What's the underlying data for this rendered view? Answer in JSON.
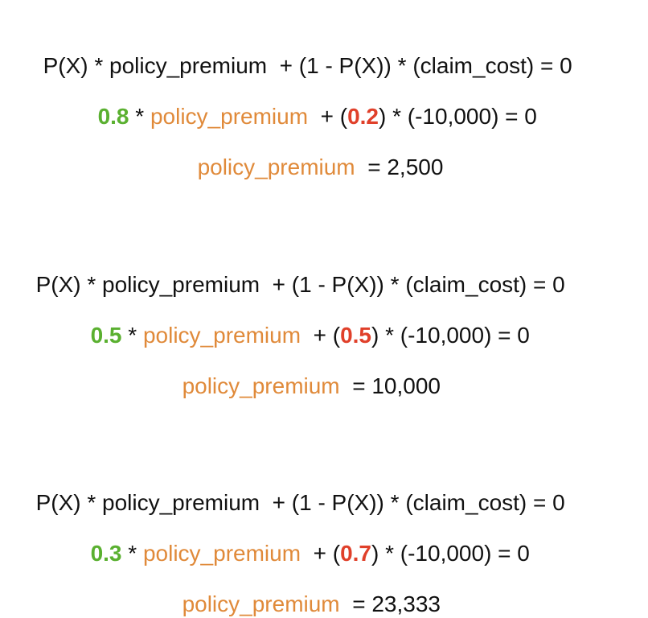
{
  "blocks": [
    {
      "general": "P(X) * policy_premium  + (1 - P(X)) * (claim_cost) = 0",
      "p": "0.8",
      "one_minus_p": "0.2",
      "times": " * ",
      "premium_label": "policy_premium",
      "plus_open": "  + (",
      "claim_tail": ") * (-10,000) = 0",
      "result_eq": "  = ",
      "result_value": "2,500"
    },
    {
      "general": "P(X) * policy_premium  + (1 - P(X)) * (claim_cost) = 0",
      "p": "0.5",
      "one_minus_p": "0.5",
      "times": " * ",
      "premium_label": "policy_premium",
      "plus_open": "  + (",
      "claim_tail": ") * (-10,000) = 0",
      "result_eq": "  = ",
      "result_value": "10,000"
    },
    {
      "general": "P(X) * policy_premium  + (1 - P(X)) * (claim_cost) = 0",
      "p": "0.3",
      "one_minus_p": "0.7",
      "times": " * ",
      "premium_label": "policy_premium",
      "plus_open": "  + (",
      "claim_tail": ") * (-10,000) = 0",
      "result_eq": "  = ",
      "result_value": "23,333"
    }
  ],
  "colors": {
    "probability": "#5ab030",
    "complement": "#e0402a",
    "premium": "#e08a3a",
    "text": "#111111"
  }
}
